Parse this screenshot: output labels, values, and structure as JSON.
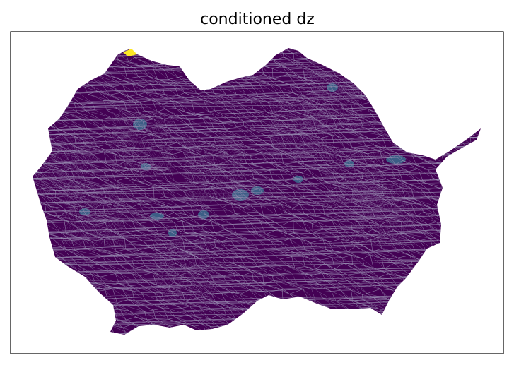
{
  "chart_data": {
    "type": "heatmap",
    "title": "conditioned dz",
    "xlabel": "",
    "ylabel": "",
    "ticks_visible": false,
    "grid": false,
    "legend": "none",
    "colormap": "viridis",
    "mesh_edge_color": "#9a8fb3",
    "base_value_color": "#440154",
    "elevated_value_color": "#3b6e8f",
    "max_value_color": "#fde725",
    "regions": [
      {
        "name": "",
        "level": "max"
      },
      {
        "name": "",
        "level": "elevated"
      }
    ]
  }
}
